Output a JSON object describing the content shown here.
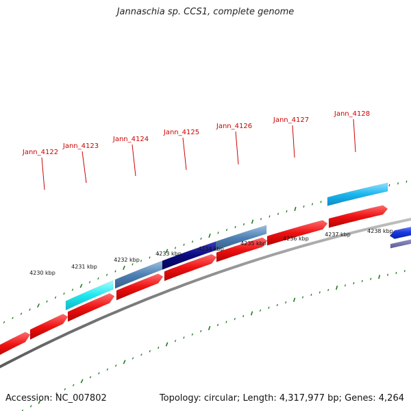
{
  "title": "Jannaschia sp. CCS1, complete genome",
  "footer": {
    "accession": "Accession: NC_007802",
    "summary": "Topology: circular; Length: 4,317,977 bp; Genes: 4,264"
  },
  "colors": {
    "backbone": "#8c8c8c",
    "ticks": "#1e7a1e",
    "cds_forward": "#ee1111",
    "cds_reverse": "#1a3adf",
    "label": "#cc0000"
  },
  "gene_labels": [
    {
      "name": "Jann_4122"
    },
    {
      "name": "Jann_4123"
    },
    {
      "name": "Jann_4124"
    },
    {
      "name": "Jann_4125"
    },
    {
      "name": "Jann_4126"
    },
    {
      "name": "Jann_4127"
    },
    {
      "name": "Jann_4128"
    }
  ],
  "kbp_ticks": [
    "4230 kbp",
    "4231 kbp",
    "4232 kbp",
    "4233 kbp",
    "4234 kbp",
    "4235 kbp",
    "4236 kbp",
    "4237 kbp",
    "4238 kbp"
  ]
}
